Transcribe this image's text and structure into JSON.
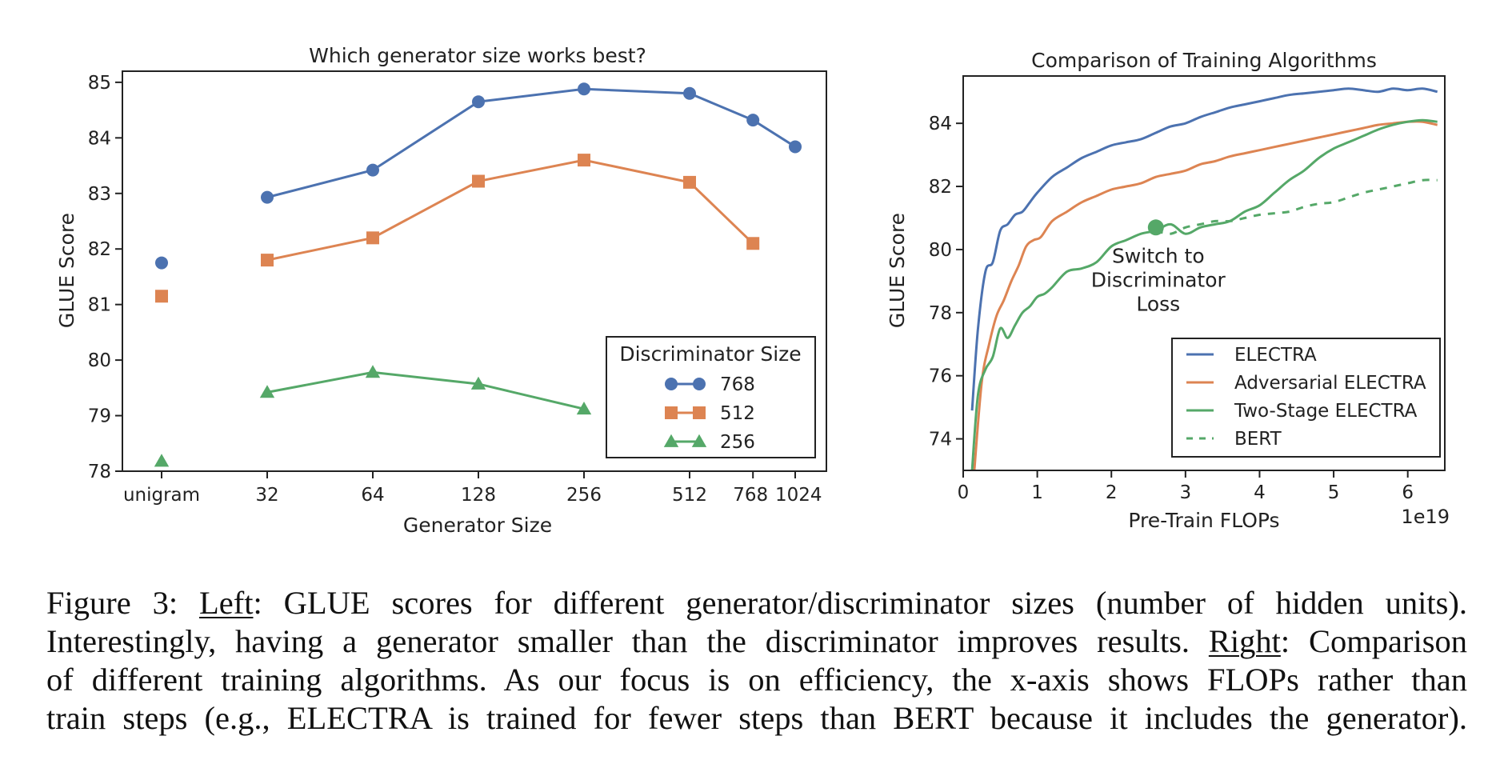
{
  "chart_data": [
    {
      "type": "line",
      "title": "Which generator size works best?",
      "xlabel": "Generator Size",
      "ylabel": "GLUE Score",
      "categories": [
        "unigram",
        "32",
        "64",
        "128",
        "256",
        "512",
        "768",
        "1024"
      ],
      "ylim": [
        78,
        85.2
      ],
      "yticks": [
        "78",
        "79",
        "80",
        "81",
        "82",
        "83",
        "84",
        "85"
      ],
      "grid": false,
      "legend": {
        "title": "Discriminator Size",
        "placement": "bottom-right"
      },
      "series": [
        {
          "name": "768",
          "marker": "circle",
          "color": "#4c72b0",
          "values": [
            81.75,
            82.93,
            83.42,
            84.65,
            84.88,
            84.8,
            84.32,
            83.84
          ]
        },
        {
          "name": "512",
          "marker": "square",
          "color": "#dd8452",
          "values": [
            81.15,
            81.8,
            82.2,
            83.22,
            83.6,
            83.2,
            82.1,
            null
          ]
        },
        {
          "name": "256",
          "marker": "triangle",
          "color": "#55a868",
          "values": [
            78.18,
            79.42,
            79.78,
            79.57,
            79.12,
            null,
            null,
            null
          ]
        }
      ]
    },
    {
      "type": "line",
      "title": "Comparison of Training Algorithms",
      "xlabel": "Pre-Train FLOPs",
      "ylabel": "GLUE Score",
      "x_multiplier": "1e19",
      "xlim": [
        0,
        6.5
      ],
      "ylim": [
        73,
        85.5
      ],
      "xticks": [
        "0",
        "1",
        "2",
        "3",
        "4",
        "5",
        "6"
      ],
      "yticks": [
        "74",
        "76",
        "78",
        "80",
        "82",
        "84"
      ],
      "grid": false,
      "legend": {
        "placement": "bottom-right"
      },
      "annotation": {
        "lines": [
          "Switch to",
          "Discriminator",
          "Loss"
        ],
        "x": 2.6,
        "y": 80.7
      },
      "series": [
        {
          "name": "ELECTRA",
          "color": "#4c72b0",
          "style": "solid",
          "x": [
            0.12,
            0.2,
            0.3,
            0.4,
            0.5,
            0.6,
            0.7,
            0.8,
            0.9,
            1.0,
            1.2,
            1.4,
            1.6,
            1.8,
            2.0,
            2.2,
            2.4,
            2.6,
            2.8,
            3.0,
            3.2,
            3.4,
            3.6,
            3.8,
            4.0,
            4.2,
            4.4,
            4.6,
            4.8,
            5.0,
            5.2,
            5.4,
            5.6,
            5.8,
            6.0,
            6.2,
            6.4
          ],
          "y": [
            74.9,
            77.5,
            79.3,
            79.6,
            80.6,
            80.8,
            81.1,
            81.2,
            81.5,
            81.8,
            82.3,
            82.6,
            82.9,
            83.1,
            83.3,
            83.4,
            83.5,
            83.7,
            83.9,
            84.0,
            84.2,
            84.35,
            84.5,
            84.6,
            84.7,
            84.8,
            84.9,
            84.95,
            85.0,
            85.05,
            85.1,
            85.05,
            85.0,
            85.1,
            85.05,
            85.1,
            85.0
          ]
        },
        {
          "name": "Adversarial ELECTRA",
          "color": "#dd8452",
          "style": "solid",
          "x": [
            0.15,
            0.25,
            0.35,
            0.45,
            0.55,
            0.65,
            0.75,
            0.85,
            0.95,
            1.05,
            1.2,
            1.4,
            1.6,
            1.8,
            2.0,
            2.2,
            2.4,
            2.6,
            2.8,
            3.0,
            3.2,
            3.4,
            3.6,
            3.8,
            4.0,
            4.2,
            4.4,
            4.6,
            4.8,
            5.0,
            5.2,
            5.4,
            5.6,
            5.8,
            6.0,
            6.2,
            6.4
          ],
          "y": [
            73.0,
            75.8,
            77.0,
            77.9,
            78.4,
            79.0,
            79.5,
            80.1,
            80.3,
            80.4,
            80.9,
            81.2,
            81.5,
            81.7,
            81.9,
            82.0,
            82.1,
            82.3,
            82.4,
            82.5,
            82.7,
            82.8,
            82.95,
            83.05,
            83.15,
            83.25,
            83.35,
            83.45,
            83.55,
            83.65,
            83.75,
            83.85,
            83.95,
            84.0,
            84.05,
            84.05,
            83.95
          ]
        },
        {
          "name": "Two-Stage ELECTRA",
          "color": "#55a868",
          "style": "solid",
          "x": [
            0.12,
            0.2,
            0.3,
            0.4,
            0.5,
            0.6,
            0.7,
            0.8,
            0.9,
            1.0,
            1.1,
            1.2,
            1.4,
            1.6,
            1.8,
            2.0,
            2.2,
            2.4,
            2.6,
            2.8,
            3.0,
            3.2,
            3.4,
            3.6,
            3.8,
            4.0,
            4.2,
            4.4,
            4.6,
            4.8,
            5.0,
            5.2,
            5.4,
            5.6,
            5.8,
            6.0,
            6.2,
            6.4
          ],
          "y": [
            73.0,
            75.4,
            76.2,
            76.6,
            77.5,
            77.2,
            77.6,
            78.0,
            78.2,
            78.5,
            78.6,
            78.8,
            79.3,
            79.4,
            79.6,
            80.1,
            80.3,
            80.5,
            80.6,
            80.8,
            80.5,
            80.7,
            80.8,
            80.9,
            81.2,
            81.4,
            81.8,
            82.2,
            82.5,
            82.9,
            83.2,
            83.4,
            83.6,
            83.8,
            83.95,
            84.05,
            84.1,
            84.05
          ]
        },
        {
          "name": "BERT",
          "color": "#55a868",
          "style": "dashed",
          "x": [
            2.6,
            2.8,
            3.0,
            3.2,
            3.4,
            3.6,
            3.8,
            4.0,
            4.2,
            4.4,
            4.6,
            4.8,
            5.0,
            5.2,
            5.4,
            5.6,
            5.8,
            6.0,
            6.2,
            6.4
          ],
          "y": [
            80.6,
            80.5,
            80.7,
            80.8,
            80.9,
            80.9,
            81.0,
            81.1,
            81.15,
            81.2,
            81.35,
            81.45,
            81.5,
            81.65,
            81.8,
            81.9,
            82.0,
            82.1,
            82.2,
            82.2
          ]
        }
      ]
    }
  ],
  "caption": {
    "line1": {
      "label": "Figure 3: ",
      "under": "Left",
      "rest": ": GLUE scores for different generator/discriminator sizes (number of hidden units)."
    },
    "line2": {
      "pre": "Interestingly, having a generator smaller than the discriminator improves results. ",
      "under": "Right",
      "rest": ": Comparison"
    },
    "line3": "of different training algorithms.  As our focus is on efficiency, the x-axis shows FLOPs rather than",
    "line4": "train steps (e.g., ELECTRA is trained for fewer steps than BERT because it includes the generator)."
  }
}
